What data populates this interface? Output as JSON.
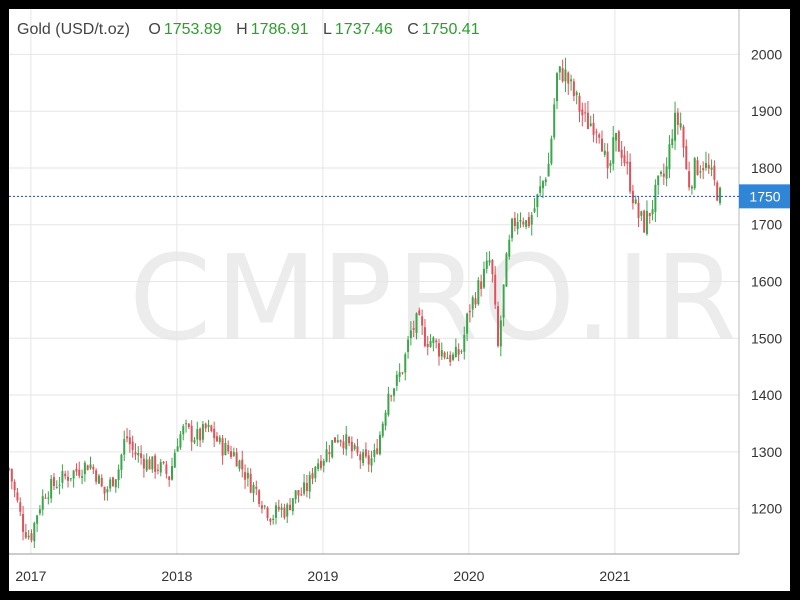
{
  "legend": {
    "title": "Gold (USD/t.oz)",
    "open_label": "O",
    "open_value": "1753.89",
    "high_label": "H",
    "high_value": "1786.91",
    "low_label": "L",
    "low_value": "1737.46",
    "close_label": "C",
    "close_value": "1750.41"
  },
  "watermark": "CMPRO.IR",
  "colors": {
    "up": "#3aa64a",
    "down": "#e0525a",
    "price_line": "#2a3fcf",
    "price_badge": "#2f86d6",
    "grid": "#e6e6e6",
    "axis_text": "#333333"
  },
  "chart_data": {
    "type": "candlestick",
    "title": "Gold (USD/t.oz)",
    "ylim": [
      1120,
      2080
    ],
    "y_ticks": [
      "1200",
      "1300",
      "1400",
      "1500",
      "1600",
      "1700",
      "1800",
      "1900",
      "2000"
    ],
    "x_range": [
      2016.85,
      2021.85
    ],
    "x_ticks": [
      "2017",
      "2018",
      "2019",
      "2020",
      "2021"
    ],
    "current_price": "1750",
    "grid": true,
    "series": [
      {
        "values_close": [
          [
            2016.85,
            1270
          ],
          [
            2016.95,
            1165
          ],
          [
            2017.0,
            1150
          ],
          [
            2017.05,
            1200
          ],
          [
            2017.1,
            1230
          ],
          [
            2017.2,
            1250
          ],
          [
            2017.3,
            1265
          ],
          [
            2017.4,
            1280
          ],
          [
            2017.45,
            1260
          ],
          [
            2017.5,
            1225
          ],
          [
            2017.6,
            1270
          ],
          [
            2017.65,
            1330
          ],
          [
            2017.7,
            1300
          ],
          [
            2017.8,
            1280
          ],
          [
            2017.9,
            1270
          ],
          [
            2017.95,
            1255
          ],
          [
            2018.0,
            1320
          ],
          [
            2018.05,
            1340
          ],
          [
            2018.1,
            1330
          ],
          [
            2018.15,
            1325
          ],
          [
            2018.2,
            1340
          ],
          [
            2018.25,
            1330
          ],
          [
            2018.3,
            1310
          ],
          [
            2018.4,
            1295
          ],
          [
            2018.45,
            1270
          ],
          [
            2018.5,
            1245
          ],
          [
            2018.55,
            1230
          ],
          [
            2018.6,
            1205
          ],
          [
            2018.65,
            1185
          ],
          [
            2018.7,
            1200
          ],
          [
            2018.75,
            1195
          ],
          [
            2018.8,
            1225
          ],
          [
            2018.85,
            1225
          ],
          [
            2018.9,
            1240
          ],
          [
            2018.95,
            1280
          ],
          [
            2019.0,
            1290
          ],
          [
            2019.05,
            1310
          ],
          [
            2019.1,
            1330
          ],
          [
            2019.15,
            1320
          ],
          [
            2019.2,
            1300
          ],
          [
            2019.25,
            1290
          ],
          [
            2019.3,
            1280
          ],
          [
            2019.35,
            1290
          ],
          [
            2019.4,
            1340
          ],
          [
            2019.45,
            1410
          ],
          [
            2019.5,
            1420
          ],
          [
            2019.55,
            1450
          ],
          [
            2019.6,
            1510
          ],
          [
            2019.65,
            1530
          ],
          [
            2019.7,
            1500
          ],
          [
            2019.75,
            1495
          ],
          [
            2019.8,
            1480
          ],
          [
            2019.85,
            1470
          ],
          [
            2019.9,
            1465
          ],
          [
            2019.95,
            1480
          ],
          [
            2020.0,
            1550
          ],
          [
            2020.05,
            1580
          ],
          [
            2020.1,
            1610
          ],
          [
            2020.15,
            1640
          ],
          [
            2020.2,
            1480
          ],
          [
            2020.25,
            1620
          ],
          [
            2020.3,
            1700
          ],
          [
            2020.35,
            1720
          ],
          [
            2020.4,
            1700
          ],
          [
            2020.45,
            1730
          ],
          [
            2020.5,
            1770
          ],
          [
            2020.55,
            1810
          ],
          [
            2020.6,
            1960
          ],
          [
            2020.65,
            1970
          ],
          [
            2020.7,
            1940
          ],
          [
            2020.75,
            1910
          ],
          [
            2020.8,
            1880
          ],
          [
            2020.85,
            1880
          ],
          [
            2020.9,
            1870
          ],
          [
            2020.95,
            1780
          ],
          [
            2021.0,
            1850
          ],
          [
            2021.05,
            1830
          ],
          [
            2021.1,
            1780
          ],
          [
            2021.15,
            1720
          ],
          [
            2021.2,
            1700
          ],
          [
            2021.25,
            1730
          ],
          [
            2021.3,
            1770
          ],
          [
            2021.35,
            1790
          ],
          [
            2021.4,
            1880
          ],
          [
            2021.45,
            1880
          ],
          [
            2021.5,
            1770
          ],
          [
            2021.55,
            1800
          ],
          [
            2021.6,
            1810
          ],
          [
            2021.65,
            1790
          ],
          [
            2021.7,
            1760
          ],
          [
            2021.72,
            1750
          ]
        ]
      }
    ]
  }
}
